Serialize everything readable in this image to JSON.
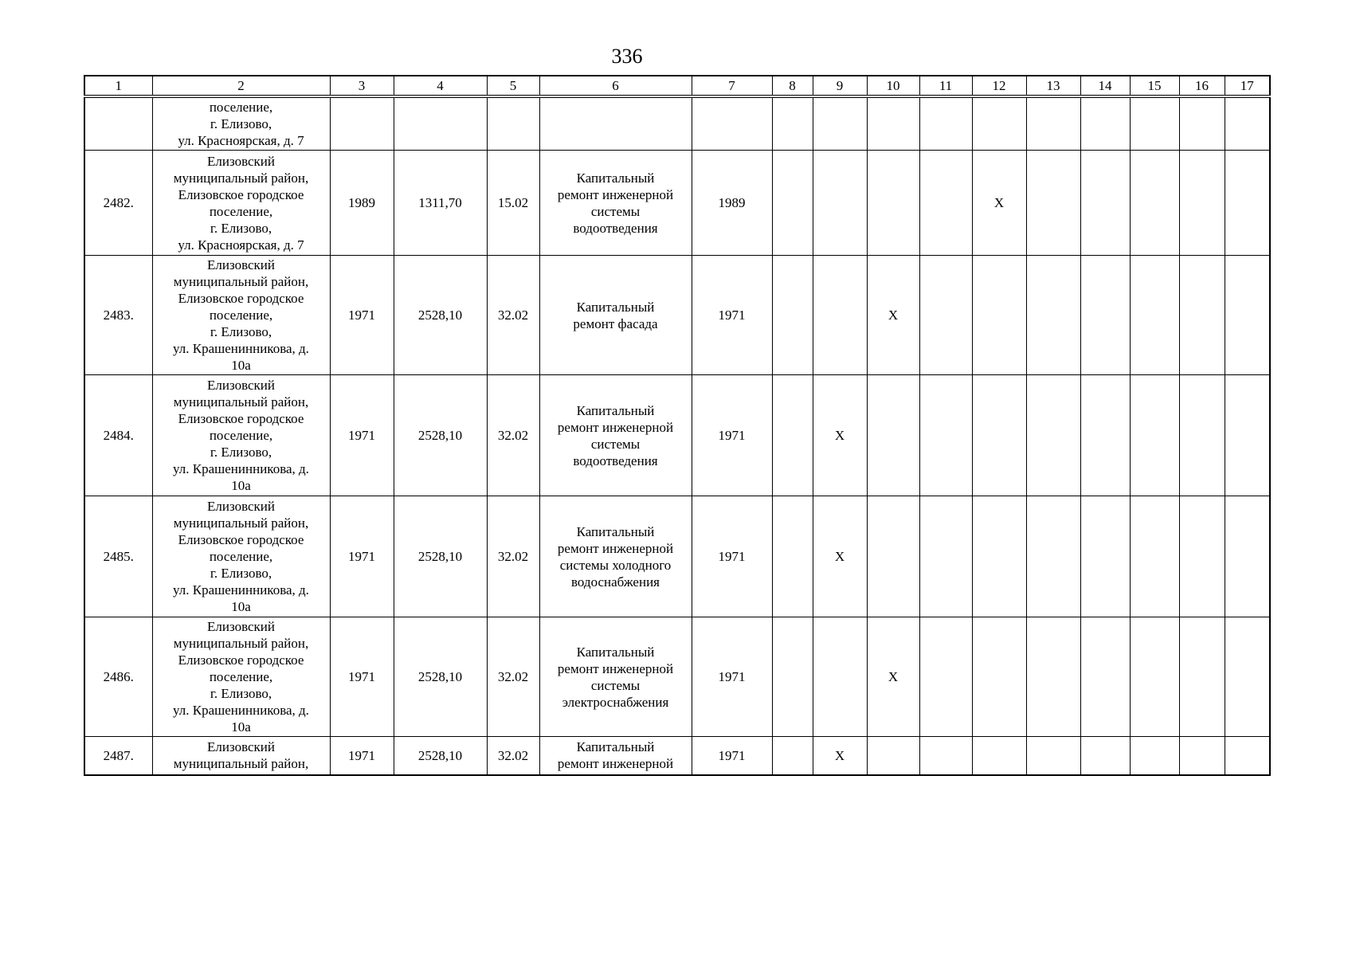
{
  "page": {
    "number": "336"
  },
  "table": {
    "column_headers": [
      "1",
      "2",
      "3",
      "4",
      "5",
      "6",
      "7",
      "8",
      "9",
      "10",
      "11",
      "12",
      "13",
      "14",
      "15",
      "16",
      "17"
    ],
    "mark_glyph": "Х",
    "rows": [
      {
        "cells": [
          "",
          "поселение,\nг. Елизово,\nул. Красноярская, д. 7",
          "",
          "",
          "",
          "",
          "",
          "",
          "",
          "",
          "",
          "",
          "",
          "",
          "",
          "",
          ""
        ]
      },
      {
        "cells": [
          "2482.",
          "Елизовский\nмуниципальный район,\nЕлизовское городское\nпоселение,\nг. Елизово,\nул. Красноярская, д. 7",
          "1989",
          "1311,70",
          "15.02",
          "Капитальный\nремонт инженерной\nсистемы\nводоотведения",
          "1989",
          "",
          "",
          "",
          "",
          "Х",
          "",
          "",
          "",
          "",
          ""
        ]
      },
      {
        "cells": [
          "2483.",
          "Елизовский\nмуниципальный район,\nЕлизовское городское\nпоселение,\nг. Елизово,\nул. Крашенинникова, д.\n10а",
          "1971",
          "2528,10",
          "32.02",
          "Капитальный\nремонт фасада",
          "1971",
          "",
          "",
          "Х",
          "",
          "",
          "",
          "",
          "",
          "",
          ""
        ]
      },
      {
        "cells": [
          "2484.",
          "Елизовский\nмуниципальный район,\nЕлизовское городское\nпоселение,\nг. Елизово,\nул. Крашенинникова, д.\n10а",
          "1971",
          "2528,10",
          "32.02",
          "Капитальный\nремонт инженерной\nсистемы\nводоотведения",
          "1971",
          "",
          "Х",
          "",
          "",
          "",
          "",
          "",
          "",
          "",
          ""
        ]
      },
      {
        "cells": [
          "2485.",
          "Елизовский\nмуниципальный район,\nЕлизовское городское\nпоселение,\nг. Елизово,\nул. Крашенинникова, д.\n10а",
          "1971",
          "2528,10",
          "32.02",
          "Капитальный\nремонт инженерной\nсистемы холодного\nводоснабжения",
          "1971",
          "",
          "Х",
          "",
          "",
          "",
          "",
          "",
          "",
          "",
          ""
        ]
      },
      {
        "cells": [
          "2486.",
          "Елизовский\nмуниципальный район,\nЕлизовское городское\nпоселение,\nг. Елизово,\nул. Крашенинникова, д.\n10а",
          "1971",
          "2528,10",
          "32.02",
          "Капитальный\nремонт инженерной\nсистемы\nэлектроснабжения",
          "1971",
          "",
          "",
          "Х",
          "",
          "",
          "",
          "",
          "",
          "",
          ""
        ]
      },
      {
        "cells": [
          "2487.",
          "Елизовский\nмуниципальный район,",
          "1971",
          "2528,10",
          "32.02",
          "Капитальный\nремонт инженерной",
          "1971",
          "",
          "Х",
          "",
          "",
          "",
          "",
          "",
          "",
          "",
          ""
        ]
      }
    ]
  }
}
